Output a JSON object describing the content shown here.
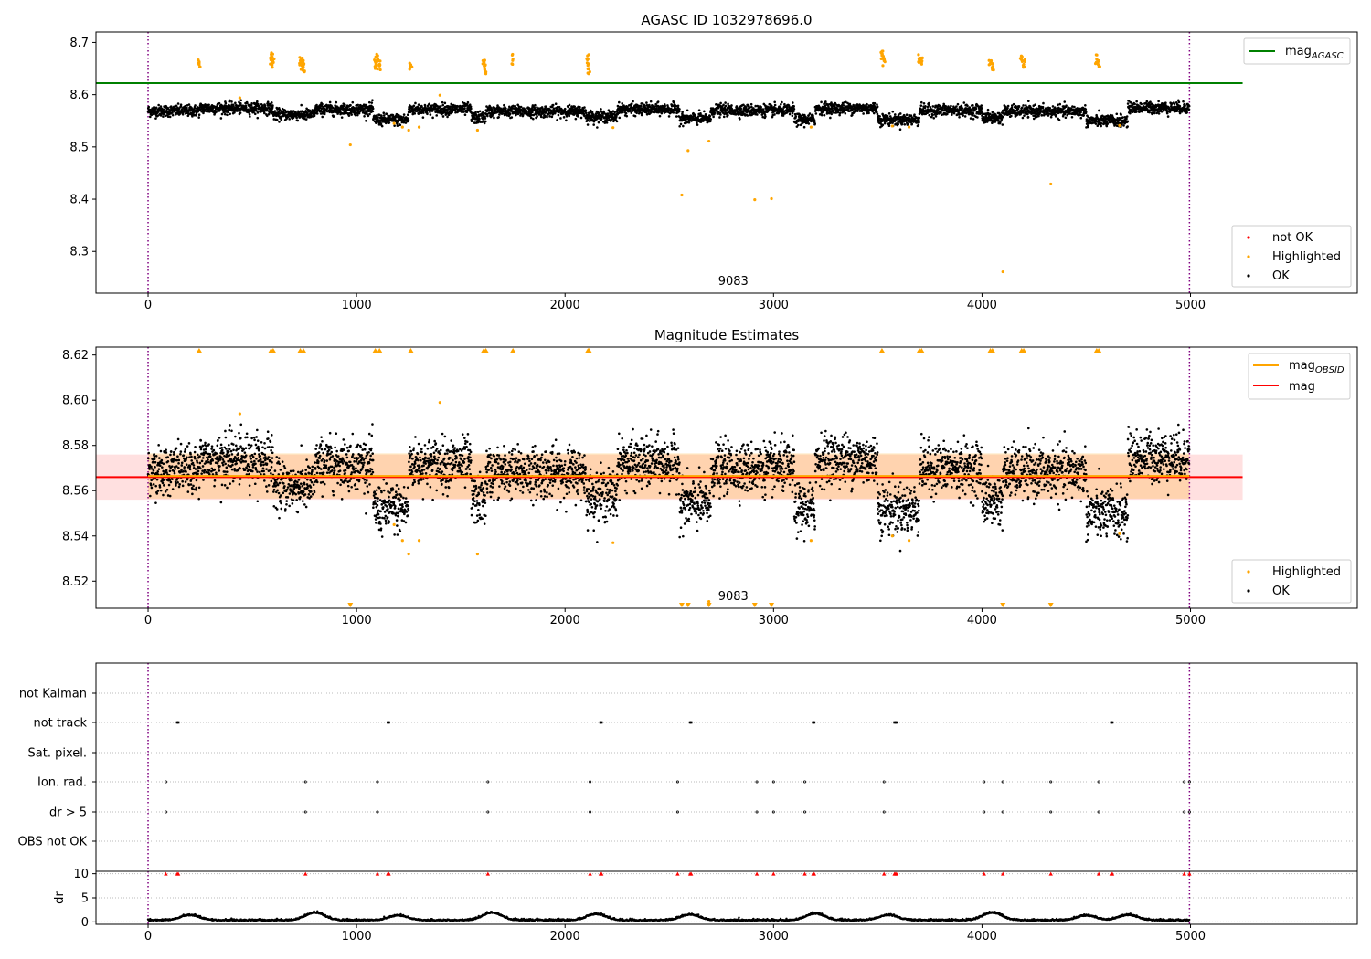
{
  "chart_data": [
    {
      "type": "scatter",
      "title": "AGASC ID 1032978696.0",
      "xlim": [
        -250,
        5800
      ],
      "ylim": [
        8.22,
        8.72
      ],
      "xticks": [
        0,
        1000,
        2000,
        3000,
        4000,
        5000
      ],
      "yticks": [
        8.3,
        8.4,
        8.5,
        8.6,
        8.7
      ],
      "obsid_label": "9083",
      "obsid_label_x": 2500,
      "obs_boundaries": [
        0,
        4995
      ],
      "mag_agasc": 8.622,
      "mag_agasc_xrange": [
        -250,
        5250
      ],
      "legend_top": [
        "mag_AGASC"
      ],
      "legend_bottom": [
        "not OK",
        "Highlighted",
        "OK"
      ],
      "series_ok": {
        "name": "OK",
        "n_points": 4995,
        "level_segments": [
          [
            0,
            250,
            8.569
          ],
          [
            250,
            600,
            8.574
          ],
          [
            600,
            800,
            8.562
          ],
          [
            800,
            1080,
            8.572
          ],
          [
            1080,
            1250,
            8.552
          ],
          [
            1250,
            1550,
            8.572
          ],
          [
            1550,
            1620,
            8.556
          ],
          [
            1620,
            2100,
            8.568
          ],
          [
            2100,
            2250,
            8.558
          ],
          [
            2250,
            2550,
            8.572
          ],
          [
            2550,
            2700,
            8.554
          ],
          [
            2700,
            3100,
            8.57
          ],
          [
            3100,
            3200,
            8.552
          ],
          [
            3200,
            3500,
            8.574
          ],
          [
            3500,
            3700,
            8.552
          ],
          [
            3700,
            4000,
            8.57
          ],
          [
            4000,
            4100,
            8.556
          ],
          [
            4100,
            4500,
            8.568
          ],
          [
            4500,
            4700,
            8.55
          ],
          [
            4700,
            4995,
            8.575
          ]
        ]
      },
      "series_highlighted_x": [
        245,
        440,
        590,
        595,
        600,
        730,
        735,
        740,
        745,
        970,
        1090,
        1095,
        1100,
        1110,
        1180,
        1220,
        1250,
        1260,
        1300,
        1400,
        1580,
        1610,
        1615,
        1620,
        1750,
        2110,
        2115,
        2230,
        2560,
        2590,
        2690,
        2910,
        2990,
        3180,
        3520,
        3530,
        3570,
        3650,
        3700,
        3710,
        4040,
        4050,
        4100,
        4190,
        4200,
        4330,
        4550,
        4560,
        4660
      ],
      "series_highlighted_y": [
        8.663,
        8.594,
        8.667,
        8.672,
        8.662,
        8.665,
        8.658,
        8.67,
        8.652,
        8.504,
        8.663,
        8.657,
        8.668,
        8.655,
        8.545,
        8.538,
        8.532,
        8.657,
        8.538,
        8.599,
        8.532,
        8.66,
        8.648,
        8.64,
        8.668,
        8.668,
        8.65,
        8.537,
        8.408,
        8.493,
        8.511,
        8.399,
        8.401,
        8.538,
        8.675,
        8.665,
        8.54,
        8.538,
        8.67,
        8.662,
        8.66,
        8.652,
        8.261,
        8.667,
        8.658,
        8.429,
        8.668,
        8.656,
        8.541
      ]
    },
    {
      "type": "scatter",
      "title": "Magnitude Estimates",
      "xlim": [
        -250,
        5800
      ],
      "ylim": [
        8.508,
        8.6235
      ],
      "xticks": [
        0,
        1000,
        2000,
        3000,
        4000,
        5000
      ],
      "yticks": [
        8.52,
        8.54,
        8.56,
        8.58,
        8.6,
        8.62
      ],
      "obsid_label": "9083",
      "obsid_label_x": 2500,
      "obs_boundaries": [
        0,
        4995
      ],
      "mag": 8.566,
      "mag_band": [
        8.556,
        8.576
      ],
      "mag_obsid": 8.5665,
      "mag_obsid_band": [
        8.5565,
        8.5765
      ],
      "mag_lines_xrange": [
        -250,
        5250
      ],
      "legend_top": [
        "mag_OBSID",
        "mag"
      ],
      "legend_bottom": [
        "Highlighted",
        "OK"
      ],
      "clipped_high_x": [
        245,
        590,
        600,
        730,
        745,
        1090,
        1110,
        1260,
        1610,
        1620,
        1750,
        2110,
        2115,
        3520,
        3700,
        3710,
        4040,
        4050,
        4190,
        4200,
        4550,
        4560
      ],
      "clipped_low_x": [
        970,
        2560,
        2590,
        2690,
        2910,
        2990,
        4100,
        4330
      ]
    },
    {
      "type": "scatter",
      "title": "",
      "xlim": [
        -250,
        5800
      ],
      "categories": [
        "not Kalman",
        "not track",
        "Sat. pixel.",
        "Ion. rad.",
        "dr > 5",
        "OBS not OK"
      ],
      "xticks": [
        0,
        1000,
        2000,
        3000,
        4000,
        5000
      ],
      "obs_boundaries": [
        0,
        4995
      ],
      "not_track_x": [
        140,
        145,
        1150,
        1155,
        2170,
        2175,
        2600,
        2605,
        3190,
        3195,
        3580,
        3585,
        3590,
        4620,
        4625
      ],
      "ion_rad_x": [
        85,
        755,
        1100,
        1630,
        2120,
        2540,
        2920,
        3000,
        3150,
        3530,
        4010,
        4100,
        4330,
        4560,
        4970,
        4995
      ],
      "dr_gt_5_x": [
        85,
        755,
        1100,
        1630,
        2120,
        2540,
        2920,
        3000,
        3150,
        3530,
        4010,
        4100,
        4330,
        4560,
        4970,
        4995
      ],
      "dr_ylabel": "dr",
      "dr_ylim": [
        -0.5,
        10.5
      ],
      "dr_yticks": [
        0,
        5,
        10
      ],
      "dr_clipped_x": [
        85,
        140,
        145,
        755,
        1100,
        1150,
        1155,
        1630,
        2120,
        2170,
        2175,
        2540,
        2600,
        2605,
        2920,
        3000,
        3150,
        3190,
        3195,
        3530,
        3580,
        3585,
        3590,
        4010,
        4100,
        4330,
        4560,
        4620,
        4625,
        4970,
        4995
      ],
      "dr_bumps": [
        [
          200,
          1.1
        ],
        [
          800,
          1.6
        ],
        [
          1200,
          1.0
        ],
        [
          1650,
          1.6
        ],
        [
          2150,
          1.3
        ],
        [
          2600,
          1.2
        ],
        [
          3200,
          1.4
        ],
        [
          3550,
          1.1
        ],
        [
          4050,
          1.6
        ],
        [
          4500,
          1.0
        ],
        [
          4700,
          1.1
        ]
      ]
    }
  ]
}
